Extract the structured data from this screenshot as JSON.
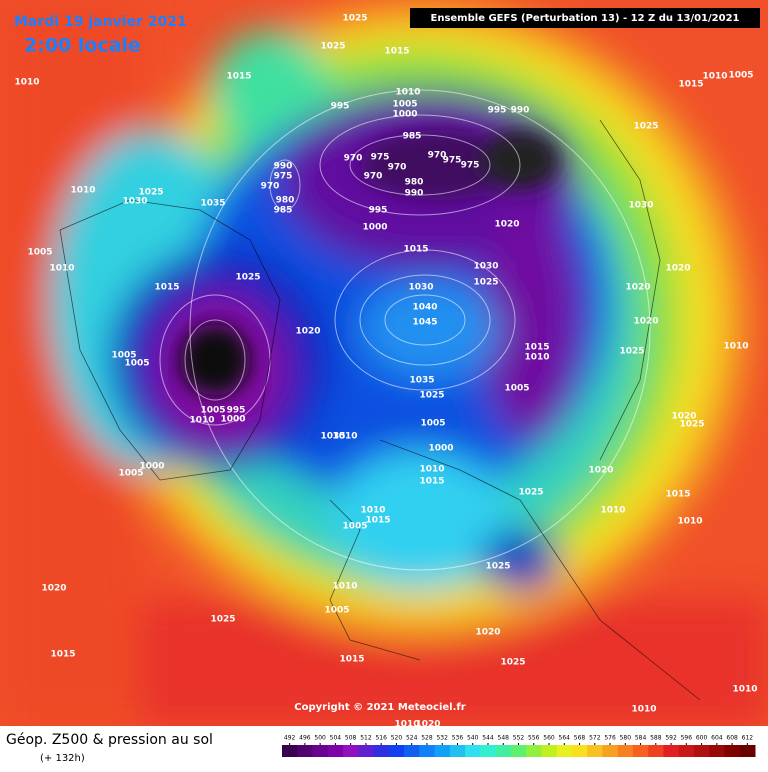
{
  "header": {
    "date": "Mardi 19 janvier 2021",
    "time": "2:00 locale",
    "run": "Ensemble GEFS  (Perturbation 13)  -  12 Z du 13/01/2021"
  },
  "map": {
    "pressure_labels": [
      1025,
      1025,
      1015,
      1015,
      1010,
      1010,
      1005,
      1015,
      1010,
      995,
      1005,
      1000,
      995,
      990,
      985,
      1025,
      990,
      975,
      970,
      980,
      985,
      970,
      975,
      970,
      970,
      970,
      975,
      975,
      980,
      990,
      1010,
      1025,
      1030,
      1035,
      995,
      1000,
      1030,
      1020,
      1005,
      1010,
      1015,
      1030,
      1025,
      1020,
      1025,
      1015,
      1030,
      1020,
      1040,
      1045,
      1020,
      1020,
      1015,
      1010,
      1025,
      1010,
      1005,
      1005,
      1035,
      1005,
      1025,
      1005,
      995,
      1000,
      1010,
      1020,
      1025,
      1035,
      1005,
      1010,
      1000,
      1010,
      1015,
      1000,
      1005,
      1020,
      1025,
      1015,
      1010,
      1005,
      1015,
      1010,
      1010,
      1025,
      1010,
      1020,
      1005,
      1025,
      1020,
      1015,
      1015,
      1025,
      1010,
      1010,
      1010,
      1020
    ]
  },
  "copyright": "Copyright © 2021 Meteociel.fr",
  "footer": {
    "title": "Géop. Z500 & pression au sol",
    "subtitle": "(+ 132h)"
  },
  "colorbar": {
    "ticks": [
      492,
      496,
      500,
      504,
      508,
      512,
      516,
      520,
      524,
      528,
      532,
      536,
      540,
      544,
      548,
      552,
      556,
      560,
      564,
      568,
      572,
      576,
      580,
      584,
      588,
      592,
      596,
      600,
      604,
      608,
      612
    ]
  }
}
